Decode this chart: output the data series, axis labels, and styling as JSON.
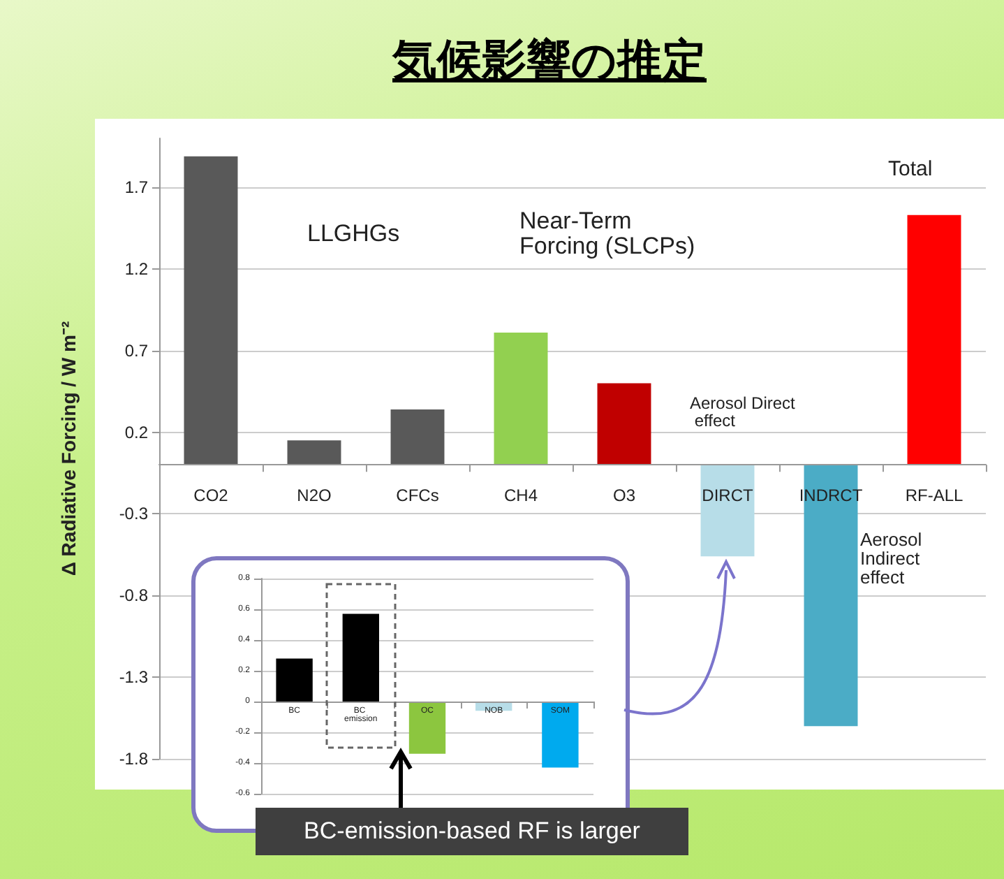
{
  "chart_data": [
    {
      "type": "bar",
      "title": "気候影響の推定",
      "ylabel": "Δ Radiative Forcing / W m⁻²",
      "categories": [
        "CO2",
        "N2O",
        "CFCs",
        "CH4",
        "O3",
        "DIRCT",
        "INDRCT",
        "RF-ALL"
      ],
      "values": [
        1.89,
        0.15,
        0.34,
        0.81,
        0.5,
        -0.56,
        -1.6,
        1.53
      ],
      "colors": [
        "#595959",
        "#595959",
        "#595959",
        "#92d050",
        "#c00000",
        "#b7dde8",
        "#4bacc6",
        "#ff0000"
      ],
      "ylim": [
        -1.8,
        2.0
      ],
      "yticks": [
        -1.8,
        -1.3,
        -0.8,
        -0.3,
        0.2,
        0.7,
        1.2,
        1.7
      ],
      "grid": "y",
      "annotations": [
        "LLGHGs",
        "Near-Term Forcing (SLCPs)",
        "Total",
        "Aerosol Direct effect",
        "Aerosol Indirect effect"
      ]
    },
    {
      "type": "bar",
      "categories": [
        "BC",
        "BC emission",
        "OC",
        "NOB",
        "SOM"
      ],
      "values": [
        0.28,
        0.57,
        -0.34,
        -0.06,
        -0.43
      ],
      "colors": [
        "#000000",
        "#000000",
        "#8cc63f",
        "#b7dde8",
        "#00aaee"
      ],
      "ylim": [
        -0.6,
        0.8
      ],
      "yticks": [
        -0.6,
        -0.4,
        -0.2,
        0,
        0.2,
        0.4,
        0.6,
        0.8
      ],
      "grid": "y",
      "annotations": [
        "BC-emission-based RF is larger"
      ]
    }
  ]
}
